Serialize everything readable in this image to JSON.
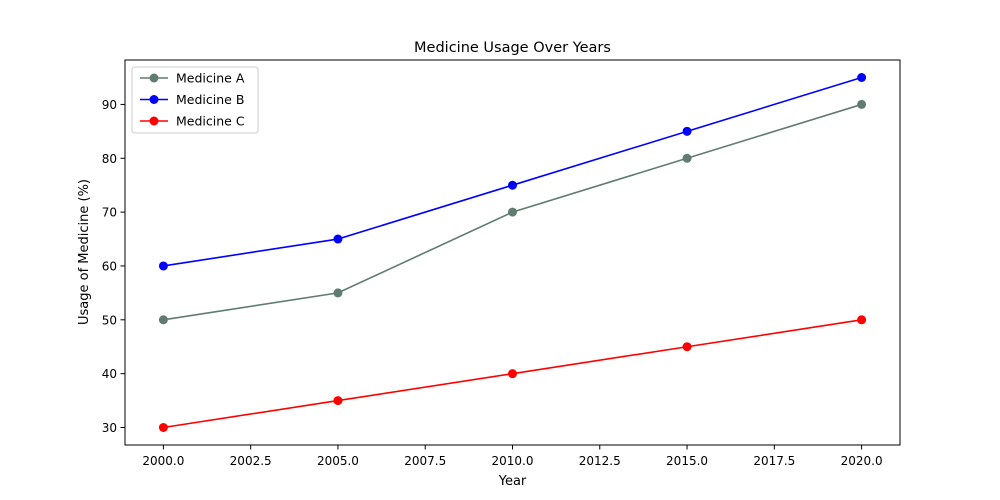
{
  "chart_data": {
    "type": "line",
    "title": "Medicine Usage Over Years",
    "xlabel": "Year",
    "ylabel": "Usage of Medicine (%)",
    "x": [
      2000,
      2005,
      2010,
      2015,
      2020
    ],
    "xlim": [
      1998.9,
      2021.1
    ],
    "ylim": [
      26.75,
      98.25
    ],
    "xticks": [
      2000.0,
      2002.5,
      2005.0,
      2007.5,
      2010.0,
      2012.5,
      2015.0,
      2017.5,
      2020.0
    ],
    "xtick_labels": [
      "2000.0",
      "2002.5",
      "2005.0",
      "2007.5",
      "2010.0",
      "2012.5",
      "2015.0",
      "2017.5",
      "2020.0"
    ],
    "yticks": [
      30,
      40,
      50,
      60,
      70,
      80,
      90
    ],
    "ytick_labels": [
      "30",
      "40",
      "50",
      "60",
      "70",
      "80",
      "90"
    ],
    "grid": false,
    "legend_position": "top-left",
    "series": [
      {
        "name": "Medicine A",
        "color": "#607b70",
        "values": [
          50,
          55,
          70,
          80,
          90
        ]
      },
      {
        "name": "Medicine B",
        "color": "#0000ff",
        "values": [
          60,
          65,
          75,
          85,
          95
        ]
      },
      {
        "name": "Medicine C",
        "color": "#ff0000",
        "values": [
          30,
          35,
          40,
          45,
          50
        ]
      }
    ]
  }
}
